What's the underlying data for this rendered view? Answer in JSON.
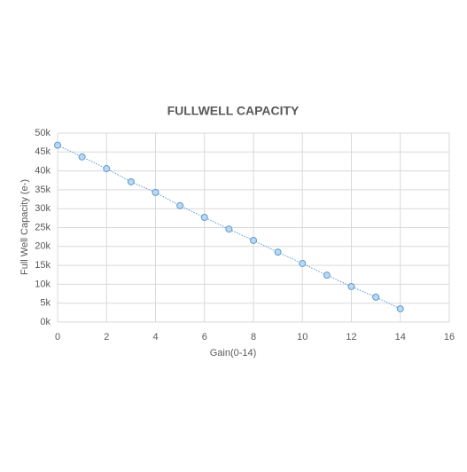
{
  "chart_data": {
    "type": "scatter",
    "title": "FULLWELL CAPACITY",
    "x_label": "Gain(0-14)",
    "y_label": "Full Well Capacity (e-)",
    "x": [
      0,
      1,
      2,
      3,
      4,
      5,
      6,
      7,
      8,
      9,
      10,
      11,
      12,
      13,
      14
    ],
    "series": [
      {
        "color": "#5b9bd5",
        "values": [
          46800,
          43700,
          40600,
          37100,
          34300,
          30800,
          27700,
          24600,
          21600,
          18500,
          15500,
          12400,
          9400,
          6600,
          3500
        ]
      }
    ],
    "xlim": [
      0,
      16
    ],
    "xticks": [
      0,
      2,
      4,
      6,
      8,
      10,
      12,
      14,
      16
    ],
    "ylim": [
      0,
      50000
    ],
    "yticks": [
      {
        "value": 0,
        "label": "0k"
      },
      {
        "value": 5000,
        "label": "5k"
      },
      {
        "value": 10000,
        "label": "10k"
      },
      {
        "value": 15000,
        "label": "15k"
      },
      {
        "value": 20000,
        "label": "20k"
      },
      {
        "value": 25000,
        "label": "25k"
      },
      {
        "value": 30000,
        "label": "30k"
      },
      {
        "value": 35000,
        "label": "35k"
      },
      {
        "value": 40000,
        "label": "40k"
      },
      {
        "value": 45000,
        "label": "45k"
      },
      {
        "value": 50000,
        "label": "50k"
      }
    ],
    "grid": true
  }
}
